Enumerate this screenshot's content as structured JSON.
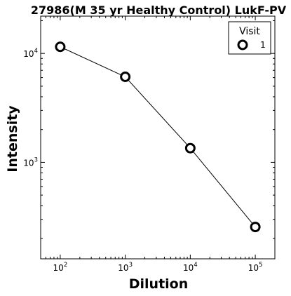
{
  "chart_data": {
    "type": "line",
    "title": "27986(M 35 yr Healthy Control) LukF-PV",
    "xlabel": "Dilution",
    "ylabel": "Intensity",
    "xscale": "log",
    "yscale": "log",
    "xlim": [
      50,
      200000
    ],
    "ylim": [
      130,
      22000
    ],
    "x_ticks": [
      {
        "base": "10",
        "exp": "2",
        "value": 100
      },
      {
        "base": "10",
        "exp": "3",
        "value": 1000
      },
      {
        "base": "10",
        "exp": "4",
        "value": 10000
      },
      {
        "base": "10",
        "exp": "5",
        "value": 100000
      }
    ],
    "y_ticks": [
      {
        "base": "10",
        "exp": "3",
        "value": 1000
      },
      {
        "base": "10",
        "exp": "4",
        "value": 10000
      }
    ],
    "grid": false,
    "legend": {
      "title": "Visit",
      "position": "top-right"
    },
    "series": [
      {
        "name": "1",
        "color": "#000000",
        "marker": "open-circle",
        "x": [
          100,
          1000,
          10000,
          100000
        ],
        "y": [
          11500,
          6100,
          1350,
          255
        ]
      }
    ]
  }
}
